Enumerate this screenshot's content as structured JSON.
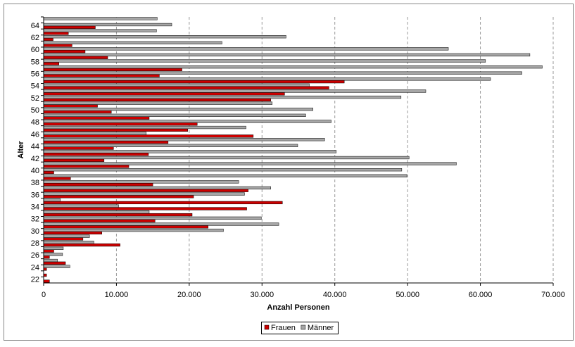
{
  "chart_data": {
    "type": "hbar",
    "x_label": "Anzahl Personen",
    "y_label": "Alter",
    "categories": [
      "22",
      null,
      "24",
      null,
      "26",
      null,
      "28",
      null,
      "30",
      null,
      "32",
      null,
      "34",
      null,
      "36",
      null,
      "38",
      null,
      "40",
      null,
      "42",
      null,
      "44",
      null,
      "46",
      null,
      "48",
      null,
      "50",
      null,
      "52",
      null,
      "54",
      null,
      "56",
      null,
      "58",
      null,
      "60",
      null,
      "62",
      null,
      "64",
      null
    ],
    "series": [
      {
        "name": "Frauen",
        "color": "#cc0000",
        "values": [
          800,
          400,
          400,
          3000,
          800,
          1400,
          10500,
          5400,
          8000,
          22600,
          15300,
          20400,
          27900,
          32800,
          20600,
          28100,
          15000,
          3700,
          1400,
          11700,
          8300,
          14400,
          9600,
          17100,
          28800,
          19800,
          21100,
          14500,
          9300,
          7400,
          31200,
          33100,
          39200,
          41300,
          15900,
          19000,
          2100,
          8800,
          5700,
          3900,
          1300,
          3400,
          7100,
          0
        ]
      },
      {
        "name": "Männer",
        "color": "#a6a6a6",
        "values": [
          0,
          0,
          3600,
          1900,
          2600,
          2700,
          6900,
          6300,
          24700,
          32300,
          29900,
          14500,
          10300,
          2300,
          27600,
          31200,
          26800,
          49900,
          49200,
          56700,
          50200,
          40200,
          34900,
          38600,
          14100,
          27800,
          39500,
          36000,
          37000,
          31400,
          49100,
          52500,
          36500,
          61400,
          65700,
          68500,
          60700,
          66800,
          55600,
          24500,
          33300,
          15500,
          17600,
          15600
        ]
      }
    ],
    "xlim": [
      0,
      70000
    ],
    "xticks": [
      0,
      {
        "value": 10000,
        "label": "10.000"
      },
      {
        "value": 20000,
        "label": "20.000"
      },
      {
        "value": 30000,
        "label": "30.000"
      },
      {
        "value": 40000,
        "label": "40.000"
      },
      {
        "value": 50000,
        "label": "50.000"
      },
      {
        "value": 60000,
        "label": "60.000"
      },
      {
        "value": 70000,
        "label": "70.000"
      }
    ],
    "grid": true,
    "legend": "bottom"
  }
}
